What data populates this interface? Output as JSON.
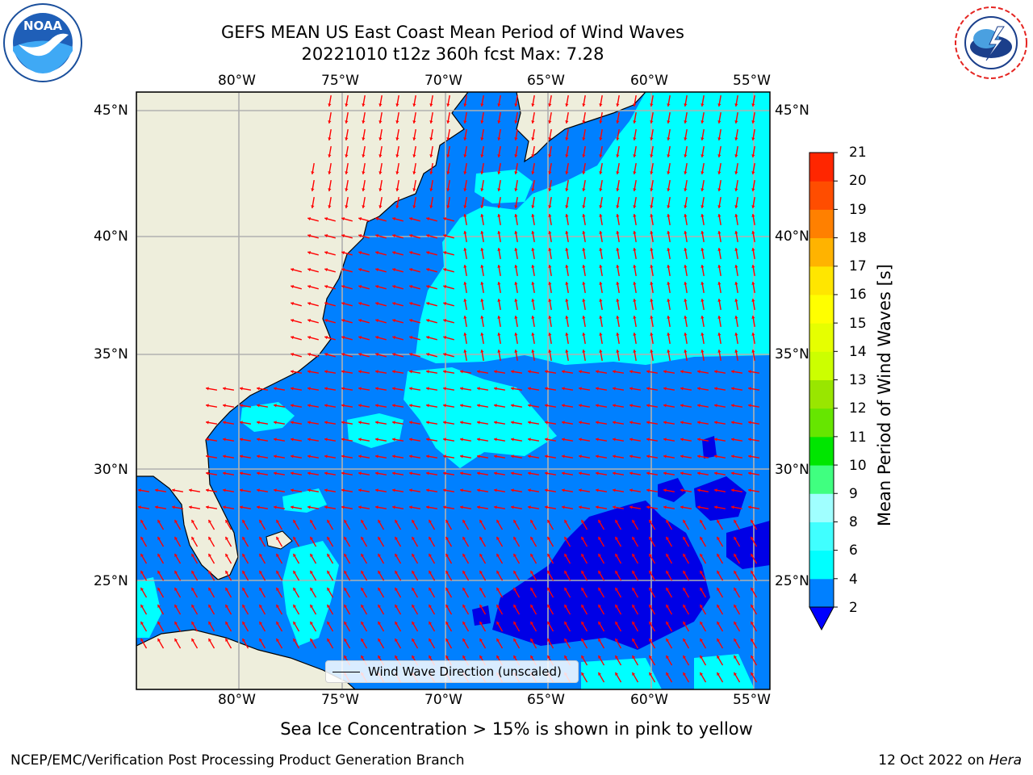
{
  "title": {
    "line1": "GEFS MEAN US East Coast Mean Period of Wind Waves",
    "line2": "20221010 t12z 360h fcst   Max: 7.28"
  },
  "logos": {
    "left": "NOAA",
    "right": "NATIONAL WEATHER SERVICE"
  },
  "map": {
    "lon_ticks": [
      "80°W",
      "75°W",
      "70°W",
      "65°W",
      "60°W",
      "55°W"
    ],
    "lat_ticks": [
      "45°N",
      "40°N",
      "35°N",
      "30°N",
      "25°N"
    ],
    "legend_label": "Wind Wave Direction (unscaled)",
    "colors": {
      "land": "#eeeedc",
      "ocean_2_4": "#0080ff",
      "ocean_4_6": "#00ffff",
      "ocean_below_2": "#0000e6",
      "arrow": "#ff0000",
      "grid": "#b0b0b0"
    }
  },
  "colorbar": {
    "title": "Mean Period of Wind Waves [s]",
    "ticks": [
      "2",
      "4",
      "6",
      "8",
      "9",
      "10",
      "11",
      "12",
      "13",
      "14",
      "15",
      "16",
      "17",
      "18",
      "19",
      "20",
      "21"
    ],
    "colors": [
      "#0080ff",
      "#00ffff",
      "#40ffff",
      "#a0ffff",
      "#40ff80",
      "#00e600",
      "#66e600",
      "#99e600",
      "#ccff00",
      "#e6ff00",
      "#ffff00",
      "#ffe600",
      "#ffb300",
      "#ff8000",
      "#ff4d00",
      "#ff2600",
      "#ff0000"
    ],
    "under_color": "#0000ff"
  },
  "footer": {
    "note": "Sea Ice Concentration > 15% is shown in pink to yellow",
    "left": "NCEP/EMC/Verification Post Processing Product Generation Branch",
    "right_date": "12 Oct 2022 on ",
    "right_host": "Hera"
  }
}
